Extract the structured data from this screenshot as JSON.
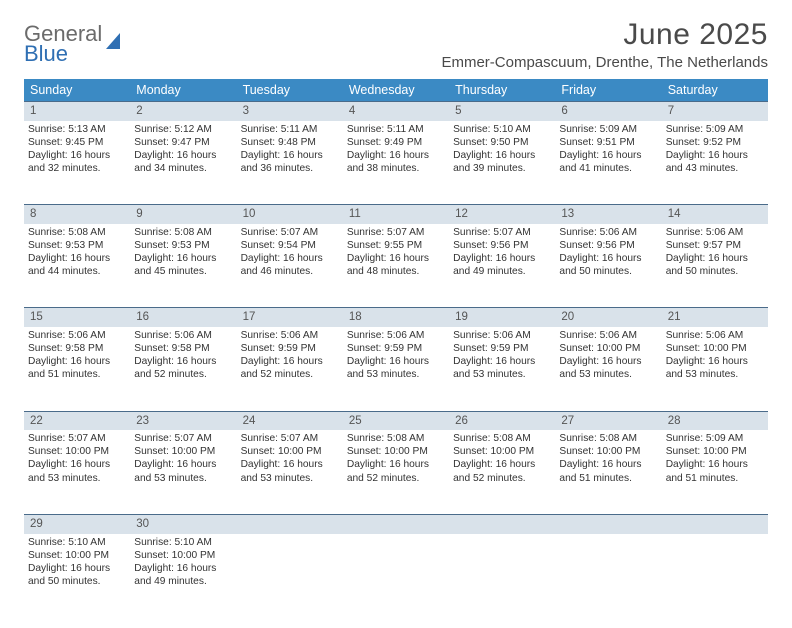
{
  "logo": {
    "line1": "General",
    "line2": "Blue"
  },
  "title": "June 2025",
  "location": "Emmer-Compascuum, Drenthe, The Netherlands",
  "colors": {
    "header_bg": "#3b8ac4",
    "header_text": "#ffffff",
    "daynum_bg": "#d9e2ea",
    "daynum_border": "#4a6b8a",
    "logo_gray": "#6b6b6b",
    "logo_blue": "#2f6fb3",
    "body_text": "#333333"
  },
  "weekdays": [
    "Sunday",
    "Monday",
    "Tuesday",
    "Wednesday",
    "Thursday",
    "Friday",
    "Saturday"
  ],
  "weeks": [
    {
      "nums": [
        "1",
        "2",
        "3",
        "4",
        "5",
        "6",
        "7"
      ],
      "cells": [
        {
          "sunrise": "Sunrise: 5:13 AM",
          "sunset": "Sunset: 9:45 PM",
          "day1": "Daylight: 16 hours",
          "day2": "and 32 minutes."
        },
        {
          "sunrise": "Sunrise: 5:12 AM",
          "sunset": "Sunset: 9:47 PM",
          "day1": "Daylight: 16 hours",
          "day2": "and 34 minutes."
        },
        {
          "sunrise": "Sunrise: 5:11 AM",
          "sunset": "Sunset: 9:48 PM",
          "day1": "Daylight: 16 hours",
          "day2": "and 36 minutes."
        },
        {
          "sunrise": "Sunrise: 5:11 AM",
          "sunset": "Sunset: 9:49 PM",
          "day1": "Daylight: 16 hours",
          "day2": "and 38 minutes."
        },
        {
          "sunrise": "Sunrise: 5:10 AM",
          "sunset": "Sunset: 9:50 PM",
          "day1": "Daylight: 16 hours",
          "day2": "and 39 minutes."
        },
        {
          "sunrise": "Sunrise: 5:09 AM",
          "sunset": "Sunset: 9:51 PM",
          "day1": "Daylight: 16 hours",
          "day2": "and 41 minutes."
        },
        {
          "sunrise": "Sunrise: 5:09 AM",
          "sunset": "Sunset: 9:52 PM",
          "day1": "Daylight: 16 hours",
          "day2": "and 43 minutes."
        }
      ]
    },
    {
      "nums": [
        "8",
        "9",
        "10",
        "11",
        "12",
        "13",
        "14"
      ],
      "cells": [
        {
          "sunrise": "Sunrise: 5:08 AM",
          "sunset": "Sunset: 9:53 PM",
          "day1": "Daylight: 16 hours",
          "day2": "and 44 minutes."
        },
        {
          "sunrise": "Sunrise: 5:08 AM",
          "sunset": "Sunset: 9:53 PM",
          "day1": "Daylight: 16 hours",
          "day2": "and 45 minutes."
        },
        {
          "sunrise": "Sunrise: 5:07 AM",
          "sunset": "Sunset: 9:54 PM",
          "day1": "Daylight: 16 hours",
          "day2": "and 46 minutes."
        },
        {
          "sunrise": "Sunrise: 5:07 AM",
          "sunset": "Sunset: 9:55 PM",
          "day1": "Daylight: 16 hours",
          "day2": "and 48 minutes."
        },
        {
          "sunrise": "Sunrise: 5:07 AM",
          "sunset": "Sunset: 9:56 PM",
          "day1": "Daylight: 16 hours",
          "day2": "and 49 minutes."
        },
        {
          "sunrise": "Sunrise: 5:06 AM",
          "sunset": "Sunset: 9:56 PM",
          "day1": "Daylight: 16 hours",
          "day2": "and 50 minutes."
        },
        {
          "sunrise": "Sunrise: 5:06 AM",
          "sunset": "Sunset: 9:57 PM",
          "day1": "Daylight: 16 hours",
          "day2": "and 50 minutes."
        }
      ]
    },
    {
      "nums": [
        "15",
        "16",
        "17",
        "18",
        "19",
        "20",
        "21"
      ],
      "cells": [
        {
          "sunrise": "Sunrise: 5:06 AM",
          "sunset": "Sunset: 9:58 PM",
          "day1": "Daylight: 16 hours",
          "day2": "and 51 minutes."
        },
        {
          "sunrise": "Sunrise: 5:06 AM",
          "sunset": "Sunset: 9:58 PM",
          "day1": "Daylight: 16 hours",
          "day2": "and 52 minutes."
        },
        {
          "sunrise": "Sunrise: 5:06 AM",
          "sunset": "Sunset: 9:59 PM",
          "day1": "Daylight: 16 hours",
          "day2": "and 52 minutes."
        },
        {
          "sunrise": "Sunrise: 5:06 AM",
          "sunset": "Sunset: 9:59 PM",
          "day1": "Daylight: 16 hours",
          "day2": "and 53 minutes."
        },
        {
          "sunrise": "Sunrise: 5:06 AM",
          "sunset": "Sunset: 9:59 PM",
          "day1": "Daylight: 16 hours",
          "day2": "and 53 minutes."
        },
        {
          "sunrise": "Sunrise: 5:06 AM",
          "sunset": "Sunset: 10:00 PM",
          "day1": "Daylight: 16 hours",
          "day2": "and 53 minutes."
        },
        {
          "sunrise": "Sunrise: 5:06 AM",
          "sunset": "Sunset: 10:00 PM",
          "day1": "Daylight: 16 hours",
          "day2": "and 53 minutes."
        }
      ]
    },
    {
      "nums": [
        "22",
        "23",
        "24",
        "25",
        "26",
        "27",
        "28"
      ],
      "cells": [
        {
          "sunrise": "Sunrise: 5:07 AM",
          "sunset": "Sunset: 10:00 PM",
          "day1": "Daylight: 16 hours",
          "day2": "and 53 minutes."
        },
        {
          "sunrise": "Sunrise: 5:07 AM",
          "sunset": "Sunset: 10:00 PM",
          "day1": "Daylight: 16 hours",
          "day2": "and 53 minutes."
        },
        {
          "sunrise": "Sunrise: 5:07 AM",
          "sunset": "Sunset: 10:00 PM",
          "day1": "Daylight: 16 hours",
          "day2": "and 53 minutes."
        },
        {
          "sunrise": "Sunrise: 5:08 AM",
          "sunset": "Sunset: 10:00 PM",
          "day1": "Daylight: 16 hours",
          "day2": "and 52 minutes."
        },
        {
          "sunrise": "Sunrise: 5:08 AM",
          "sunset": "Sunset: 10:00 PM",
          "day1": "Daylight: 16 hours",
          "day2": "and 52 minutes."
        },
        {
          "sunrise": "Sunrise: 5:08 AM",
          "sunset": "Sunset: 10:00 PM",
          "day1": "Daylight: 16 hours",
          "day2": "and 51 minutes."
        },
        {
          "sunrise": "Sunrise: 5:09 AM",
          "sunset": "Sunset: 10:00 PM",
          "day1": "Daylight: 16 hours",
          "day2": "and 51 minutes."
        }
      ]
    },
    {
      "nums": [
        "29",
        "30",
        "",
        "",
        "",
        "",
        ""
      ],
      "cells": [
        {
          "sunrise": "Sunrise: 5:10 AM",
          "sunset": "Sunset: 10:00 PM",
          "day1": "Daylight: 16 hours",
          "day2": "and 50 minutes."
        },
        {
          "sunrise": "Sunrise: 5:10 AM",
          "sunset": "Sunset: 10:00 PM",
          "day1": "Daylight: 16 hours",
          "day2": "and 49 minutes."
        },
        null,
        null,
        null,
        null,
        null
      ]
    }
  ]
}
